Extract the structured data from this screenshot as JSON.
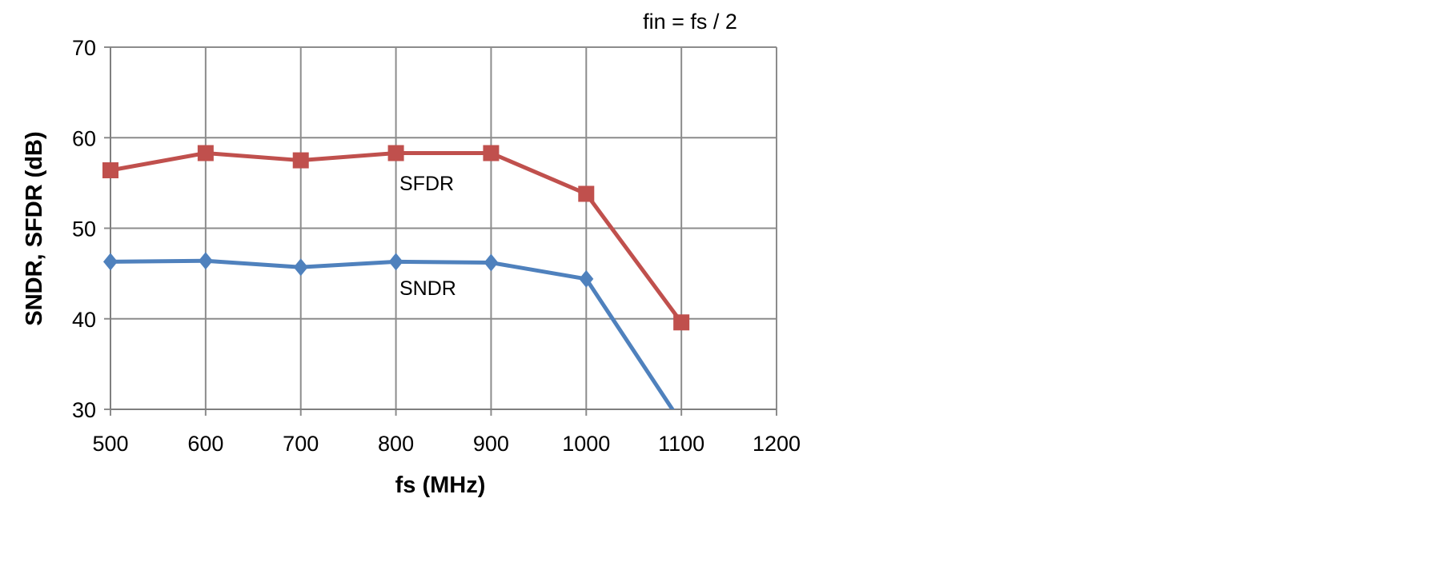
{
  "chart_data": {
    "type": "line",
    "annotation": "fin = fs / 2",
    "xlabel": "fs (MHz)",
    "ylabel": "SNDR, SFDR (dB)",
    "xlim": [
      500,
      1200
    ],
    "ylim": [
      30,
      70
    ],
    "xticks": [
      500,
      600,
      700,
      800,
      900,
      1000,
      1100,
      1200
    ],
    "yticks": [
      30,
      40,
      50,
      60,
      70
    ],
    "grid": true,
    "x": [
      500,
      600,
      700,
      800,
      900,
      1000,
      1100
    ],
    "series": [
      {
        "name": "SFDR",
        "color": "#c0504d",
        "marker": "square",
        "values": [
          56.4,
          58.3,
          57.5,
          58.3,
          58.3,
          53.8,
          39.6
        ]
      },
      {
        "name": "SNDR",
        "color": "#4f81bd",
        "marker": "diamond",
        "values": [
          46.3,
          46.4,
          45.7,
          46.3,
          46.2,
          44.4,
          28.5
        ]
      }
    ]
  }
}
